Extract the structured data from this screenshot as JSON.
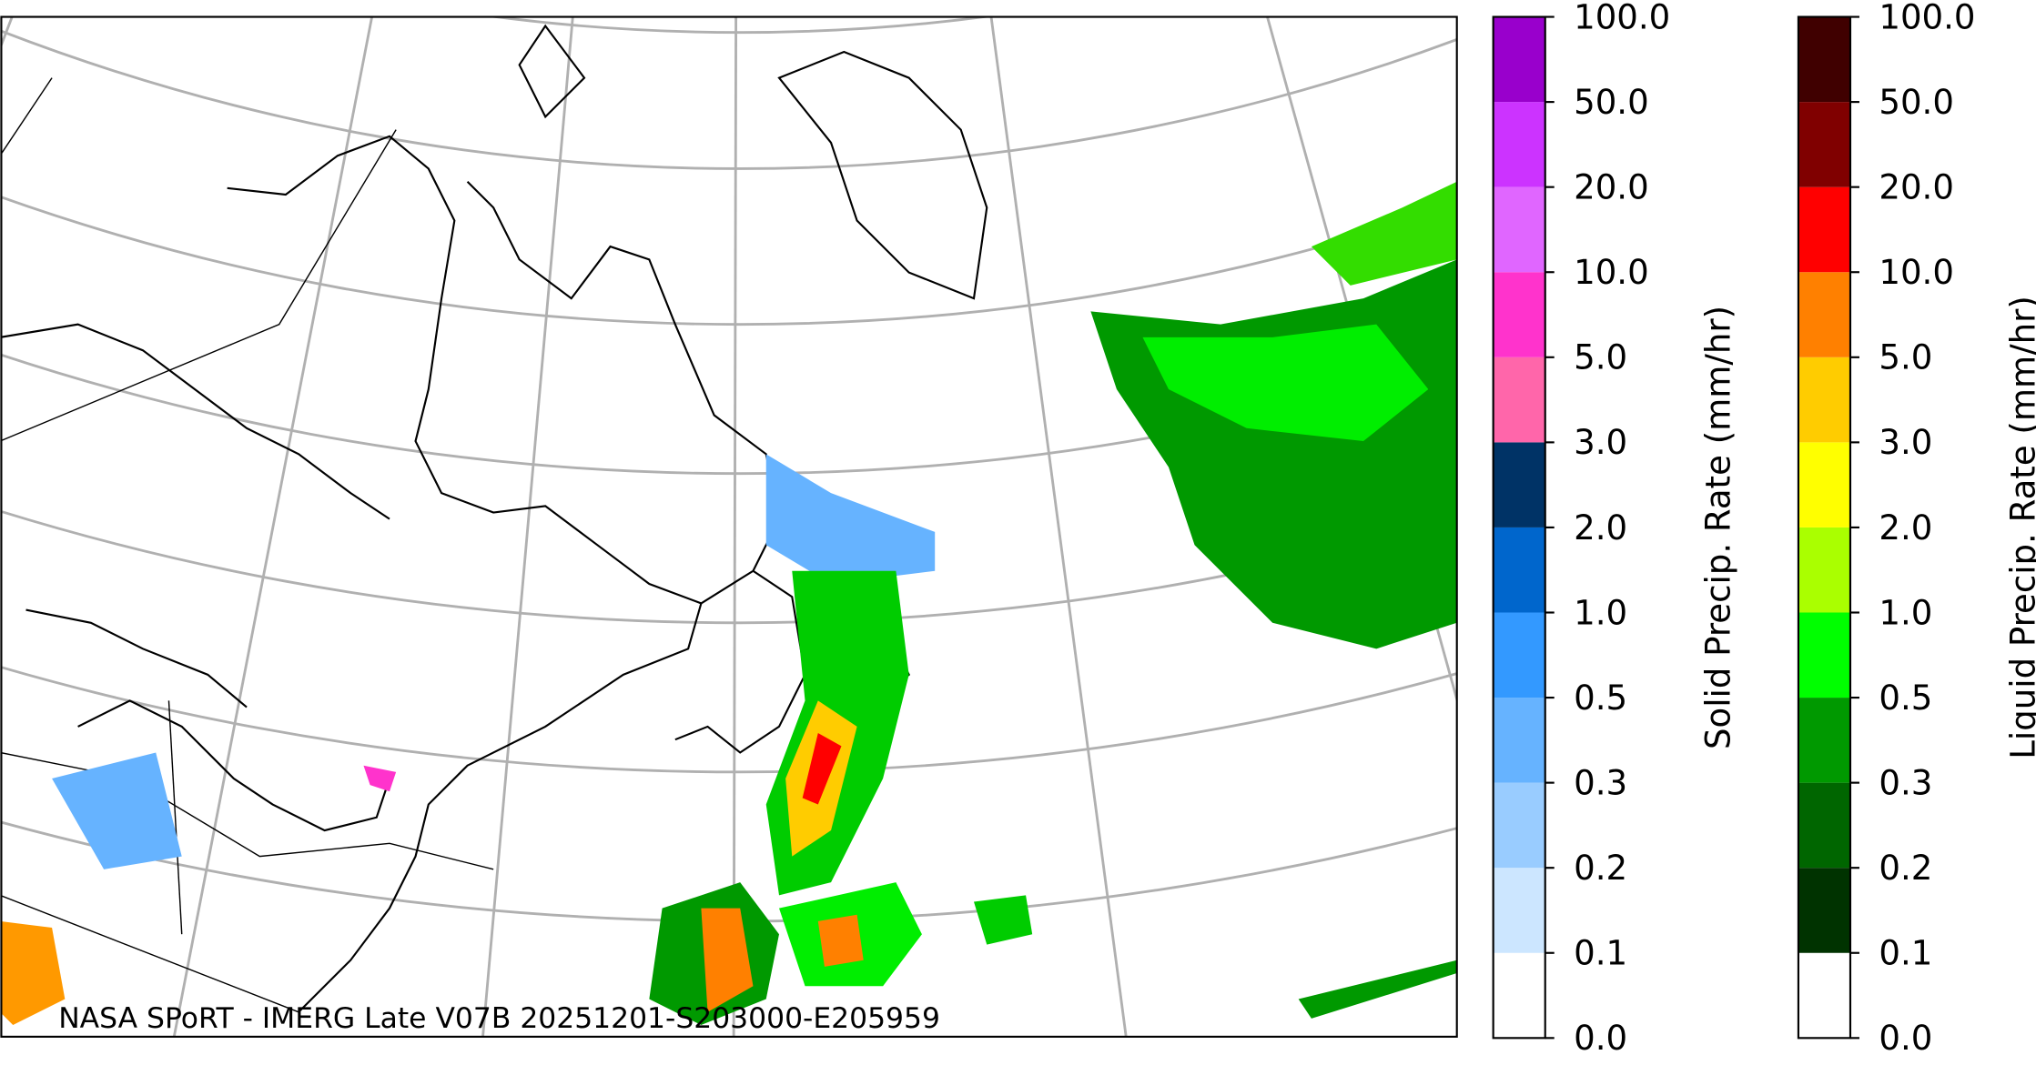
{
  "map": {
    "caption": "NASA SPoRT - IMERG Late V07B 20251201-S203000-E205959"
  },
  "colorbars": [
    {
      "label": "Solid Precip. Rate (mm/hr)",
      "ticks": [
        {
          "value": 0,
          "label": "0.0"
        },
        {
          "value": 0.1,
          "label": "0.1"
        },
        {
          "value": 0.2,
          "label": "0.2"
        },
        {
          "value": 0.3,
          "label": "0.3"
        },
        {
          "value": 0.5,
          "label": "0.5"
        },
        {
          "value": 1,
          "label": "1.0"
        },
        {
          "value": 2,
          "label": "2.0"
        },
        {
          "value": 3,
          "label": "3.0"
        },
        {
          "value": 5,
          "label": "5.0"
        },
        {
          "value": 10,
          "label": "10.0"
        },
        {
          "value": 20,
          "label": "20.0"
        },
        {
          "value": 50,
          "label": "50.0"
        },
        {
          "value": 100,
          "label": "100.0"
        }
      ],
      "colors": [
        "#ffffff",
        "#cce6ff",
        "#99ccff",
        "#66b3ff",
        "#3399ff",
        "#0066cc",
        "#003366",
        "#ff66aa",
        "#ff33cc",
        "#e066ff",
        "#cc33ff",
        "#9900cc"
      ]
    },
    {
      "label": "Liquid Precip. Rate (mm/hr)",
      "ticks": [
        {
          "value": 0,
          "label": "0.0"
        },
        {
          "value": 0.1,
          "label": "0.1"
        },
        {
          "value": 0.2,
          "label": "0.2"
        },
        {
          "value": 0.3,
          "label": "0.3"
        },
        {
          "value": 0.5,
          "label": "0.5"
        },
        {
          "value": 1,
          "label": "1.0"
        },
        {
          "value": 2,
          "label": "2.0"
        },
        {
          "value": 3,
          "label": "3.0"
        },
        {
          "value": 5,
          "label": "5.0"
        },
        {
          "value": 10,
          "label": "10.0"
        },
        {
          "value": 20,
          "label": "20.0"
        },
        {
          "value": 50,
          "label": "50.0"
        },
        {
          "value": 100,
          "label": "100.0"
        }
      ],
      "colors": [
        "#ffffff",
        "#003300",
        "#006600",
        "#009900",
        "#00ff00",
        "#aaff00",
        "#ffff00",
        "#ffcc00",
        "#ff8000",
        "#ff0000",
        "#800000",
        "#400000"
      ]
    }
  ]
}
